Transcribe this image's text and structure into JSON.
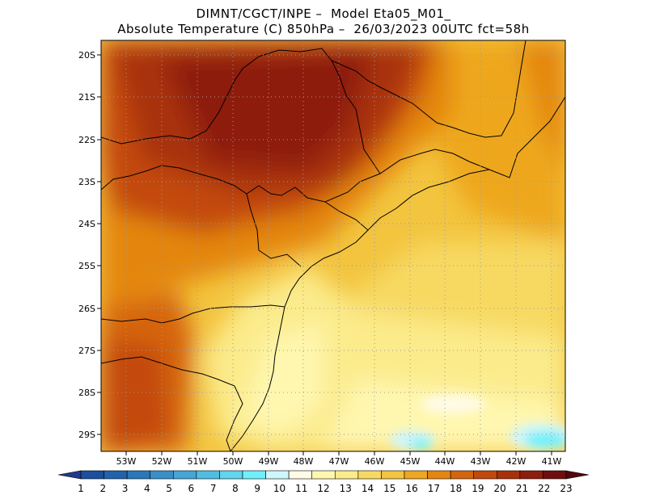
{
  "title": {
    "line1": "DIMNT/CGCT/INPE –  Model Eta05_M01_",
    "line2": "Absolute Temperature (C) 850hPa –  26/03/2023 00UTC fct=58h"
  },
  "lat_labels": [
    "20S",
    "21S",
    "22S",
    "23S",
    "24S",
    "25S",
    "26S",
    "27S",
    "28S",
    "29S"
  ],
  "lon_labels": [
    "53W",
    "52W",
    "51W",
    "50W",
    "49W",
    "48W",
    "47W",
    "46W",
    "45W",
    "44W",
    "43W",
    "42W",
    "41W"
  ],
  "colorbar": {
    "labels": [
      "1",
      "2",
      "3",
      "4",
      "5",
      "6",
      "7",
      "8",
      "9",
      "10",
      "11",
      "12",
      "13",
      "14",
      "15",
      "16",
      "17",
      "18",
      "19",
      "20",
      "21",
      "22",
      "23"
    ],
    "colors": [
      "#1f3a8c",
      "#1c4f9c",
      "#2063aa",
      "#2a78b9",
      "#3a8fc8",
      "#45a6d6",
      "#52bde2",
      "#61d4ee",
      "#6ef0fb",
      "#cff6fb",
      "#fffbe6",
      "#fff7b0",
      "#fbeb8b",
      "#f7d962",
      "#f3c43e",
      "#eea71f",
      "#e4860f",
      "#d5650d",
      "#c3480c",
      "#a8300b",
      "#8d1d0c",
      "#6e0f0e",
      "#520810"
    ]
  },
  "map": {
    "lat_range": [
      -29.5,
      -19.5
    ],
    "lon_range": [
      -53.8,
      -40.5
    ],
    "grid": "dotted"
  }
}
